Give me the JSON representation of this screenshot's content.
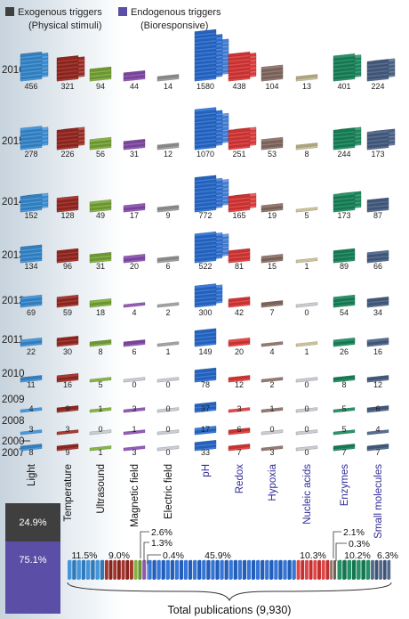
{
  "legend": {
    "exogenous": "Exogenous triggers",
    "exogenous_sub": "(Physical stimuli)",
    "endogenous": "Endogenous triggers",
    "endogenous_sub": "(Bioresponsive)",
    "exogenous_color": "#3f3f3f",
    "endogenous_color": "#5a4ea6"
  },
  "chart_data": [
    {
      "type": "bar",
      "title": "",
      "categories": [
        "Light",
        "Temperature",
        "Ultrasound",
        "Magnetic field",
        "Electric field",
        "pH",
        "Redox",
        "Hypoxia",
        "Nucleic acids",
        "Enzymes",
        "Small molecules"
      ],
      "category_groups": [
        "exogenous",
        "exogenous",
        "exogenous",
        "exogenous",
        "exogenous",
        "endogenous",
        "endogenous",
        "endogenous",
        "endogenous",
        "endogenous",
        "endogenous"
      ],
      "category_colors": [
        "#3a8fd8",
        "#9e2a22",
        "#7dac3a",
        "#8a4eb0",
        "#9a9a9a",
        "#2a6fd6",
        "#e23a3a",
        "#8a6f66",
        "#c6bd93",
        "#1a8a5e",
        "#4a6288"
      ],
      "rows": [
        "2016",
        "2015",
        "2014",
        "2013",
        "2012",
        "2011",
        "2010",
        "2009",
        "2008",
        "2000–2007"
      ],
      "row_label_lines": [
        [
          "2016"
        ],
        [
          "2015"
        ],
        [
          "2014"
        ],
        [
          "2013"
        ],
        [
          "2012"
        ],
        [
          "2011"
        ],
        [
          "2010"
        ],
        [
          "2009"
        ],
        [
          "2008"
        ],
        [
          "2000",
          "2007"
        ]
      ],
      "series": [
        {
          "name": "2016",
          "values": [
            456,
            321,
            94,
            44,
            14,
            1580,
            438,
            104,
            13,
            401,
            224
          ]
        },
        {
          "name": "2015",
          "values": [
            278,
            226,
            56,
            31,
            12,
            1070,
            251,
            53,
            8,
            244,
            173
          ]
        },
        {
          "name": "2014",
          "values": [
            152,
            128,
            49,
            17,
            9,
            772,
            165,
            19,
            5,
            173,
            87
          ]
        },
        {
          "name": "2013",
          "values": [
            134,
            96,
            31,
            20,
            6,
            522,
            81,
            15,
            1,
            89,
            66
          ]
        },
        {
          "name": "2012",
          "values": [
            69,
            59,
            18,
            4,
            2,
            300,
            42,
            7,
            0,
            54,
            34
          ]
        },
        {
          "name": "2011",
          "values": [
            22,
            30,
            8,
            6,
            1,
            149,
            20,
            4,
            1,
            26,
            16
          ]
        },
        {
          "name": "2010",
          "values": [
            11,
            16,
            5,
            0,
            0,
            78,
            12,
            2,
            0,
            8,
            12
          ]
        },
        {
          "name": "2009",
          "values": [
            4,
            9,
            1,
            3,
            0,
            37,
            3,
            1,
            0,
            5,
            6
          ]
        },
        {
          "name": "2008",
          "values": [
            3,
            3,
            0,
            1,
            0,
            17,
            6,
            0,
            0,
            5,
            4
          ]
        },
        {
          "name": "2000–2007",
          "values": [
            8,
            9,
            1,
            3,
            0,
            33,
            7,
            3,
            0,
            7,
            7
          ]
        }
      ]
    },
    {
      "type": "bar",
      "title": "",
      "categories": [
        "Exogenous triggers",
        "Endogenous triggers"
      ],
      "values": [
        24.9,
        75.1
      ],
      "labels": [
        "24.9%",
        "75.1%"
      ]
    },
    {
      "type": "bar",
      "title": "Total publications (9,930)",
      "categories": [
        "Light",
        "Temperature",
        "Ultrasound",
        "Magnetic field",
        "Electric field",
        "pH",
        "Redox",
        "Hypoxia",
        "Nucleic acids",
        "Enzymes",
        "Small molecules"
      ],
      "values": [
        11.5,
        9.0,
        2.6,
        1.3,
        0.4,
        45.9,
        10.3,
        2.1,
        0.3,
        10.2,
        6.3
      ],
      "labels": [
        "11.5%",
        "9.0%",
        "2.6%",
        "1.3%",
        "0.4%",
        "45.9%",
        "10.3%",
        "2.1%",
        "0.3%",
        "10.2%",
        "6.3%"
      ]
    }
  ]
}
